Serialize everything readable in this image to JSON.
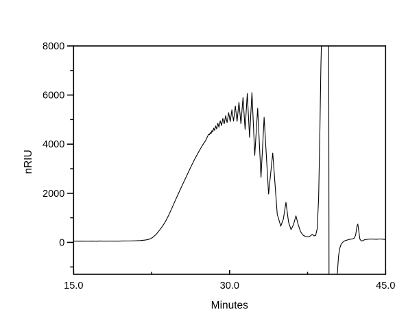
{
  "figure": {
    "background": "#ffffff",
    "description_type": "chromatogram"
  },
  "chart_data": {
    "type": "line",
    "title": "",
    "xlabel": "Minutes",
    "ylabel": "nRIU",
    "xlim": [
      15.0,
      45.0
    ],
    "ylim": [
      -1300,
      8000
    ],
    "grid": false,
    "legend": false,
    "frame": "full-box",
    "x_ticks": {
      "major": [
        15.0,
        30.0,
        45.0
      ],
      "major_labels": [
        "15.0",
        "30.0",
        "45.0"
      ],
      "minor": [
        22.5,
        37.5
      ],
      "direction": "in"
    },
    "y_ticks": {
      "major": [
        0,
        2000,
        4000,
        6000,
        8000
      ],
      "major_labels": [
        "0",
        "2000",
        "4000",
        "6000",
        "8000"
      ],
      "minor": [
        -1000,
        1000,
        3000,
        5000,
        7000
      ],
      "direction": "out"
    },
    "colors": {
      "trace": "#000000",
      "axis": "#000000",
      "text": "#000000",
      "background": "#ffffff"
    },
    "series": [
      {
        "points": [
          [
            15.0,
            50
          ],
          [
            15.6,
            52
          ],
          [
            16.2,
            48
          ],
          [
            16.8,
            52
          ],
          [
            17.3,
            46
          ],
          [
            17.45,
            56
          ],
          [
            17.9,
            50
          ],
          [
            18.5,
            52
          ],
          [
            19.1,
            50
          ],
          [
            19.7,
            55
          ],
          [
            20.3,
            58
          ],
          [
            20.9,
            65
          ],
          [
            21.4,
            75
          ],
          [
            21.9,
            95
          ],
          [
            22.3,
            130
          ],
          [
            22.6,
            200
          ],
          [
            22.95,
            330
          ],
          [
            23.25,
            490
          ],
          [
            23.55,
            660
          ],
          [
            23.85,
            860
          ],
          [
            24.15,
            1110
          ],
          [
            24.45,
            1390
          ],
          [
            24.75,
            1680
          ],
          [
            25.05,
            1960
          ],
          [
            25.35,
            2240
          ],
          [
            25.65,
            2510
          ],
          [
            25.95,
            2780
          ],
          [
            26.25,
            3050
          ],
          [
            26.55,
            3310
          ],
          [
            26.85,
            3550
          ],
          [
            27.15,
            3780
          ],
          [
            27.45,
            3990
          ],
          [
            27.7,
            4150
          ],
          [
            27.9,
            4330
          ],
          [
            27.98,
            4410
          ],
          [
            28.06,
            4380
          ],
          [
            28.14,
            4470
          ],
          [
            28.22,
            4430
          ],
          [
            28.3,
            4550
          ],
          [
            28.38,
            4500
          ],
          [
            28.47,
            4650
          ],
          [
            28.56,
            4560
          ],
          [
            28.66,
            4740
          ],
          [
            28.76,
            4620
          ],
          [
            28.87,
            4850
          ],
          [
            28.98,
            4690
          ],
          [
            29.1,
            4950
          ],
          [
            29.22,
            4760
          ],
          [
            29.35,
            5050
          ],
          [
            29.48,
            4830
          ],
          [
            29.62,
            5160
          ],
          [
            29.76,
            4880
          ],
          [
            29.91,
            5280
          ],
          [
            30.06,
            4920
          ],
          [
            30.22,
            5400
          ],
          [
            30.38,
            4940
          ],
          [
            30.55,
            5550
          ],
          [
            30.72,
            4930
          ],
          [
            30.9,
            5700
          ],
          [
            31.09,
            4830
          ],
          [
            31.29,
            5900
          ],
          [
            31.49,
            4600
          ],
          [
            31.7,
            6060
          ],
          [
            31.92,
            4280
          ],
          [
            32.15,
            6100
          ],
          [
            32.42,
            3550
          ],
          [
            32.7,
            5460
          ],
          [
            33.02,
            2650
          ],
          [
            33.32,
            5090
          ],
          [
            33.75,
            1970
          ],
          [
            34.15,
            3640
          ],
          [
            34.58,
            1150
          ],
          [
            34.92,
            660
          ],
          [
            35.17,
            950
          ],
          [
            35.42,
            1630
          ],
          [
            35.67,
            820
          ],
          [
            35.91,
            520
          ],
          [
            36.14,
            720
          ],
          [
            36.38,
            1080
          ],
          [
            36.6,
            720
          ],
          [
            36.83,
            430
          ],
          [
            37.05,
            300
          ],
          [
            37.3,
            240
          ],
          [
            37.55,
            225
          ],
          [
            37.78,
            265
          ],
          [
            37.95,
            330
          ],
          [
            38.12,
            265
          ],
          [
            38.28,
            285
          ],
          [
            38.42,
            550
          ],
          [
            38.56,
            1800
          ],
          [
            38.68,
            4500
          ],
          [
            38.78,
            7200
          ],
          [
            38.86,
            8600
          ],
          [
            39.53,
            8600
          ],
          [
            39.56,
            -1500
          ],
          [
            40.3,
            -1500
          ],
          [
            40.38,
            -1150
          ],
          [
            40.47,
            -580
          ],
          [
            40.58,
            -260
          ],
          [
            40.72,
            -80
          ],
          [
            40.9,
            15
          ],
          [
            41.1,
            70
          ],
          [
            41.35,
            100
          ],
          [
            41.6,
            130
          ],
          [
            41.82,
            140
          ],
          [
            41.98,
            170
          ],
          [
            42.12,
            300
          ],
          [
            42.25,
            660
          ],
          [
            42.33,
            745
          ],
          [
            42.43,
            430
          ],
          [
            42.53,
            130
          ],
          [
            42.67,
            55
          ],
          [
            42.82,
            75
          ],
          [
            43.0,
            110
          ],
          [
            43.3,
            130
          ],
          [
            43.7,
            135
          ],
          [
            44.1,
            125
          ],
          [
            44.5,
            138
          ],
          [
            44.8,
            125
          ],
          [
            45.0,
            115
          ]
        ]
      }
    ]
  }
}
